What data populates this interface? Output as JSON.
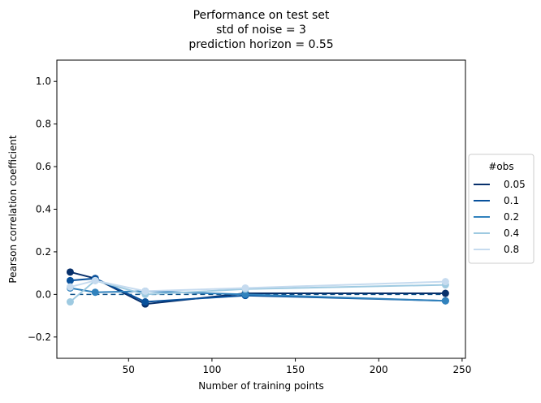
{
  "chart_data": {
    "type": "line",
    "title": [
      "Performance on test set",
      "std of noise = 3",
      "prediction horizon = 0.55"
    ],
    "xlabel": "Number of training points",
    "ylabel": "Pearson correlation coefficient",
    "xlim": [
      7,
      252
    ],
    "ylim": [
      -0.3,
      1.1
    ],
    "xticks": [
      50,
      100,
      150,
      200,
      250
    ],
    "yticks": [
      -0.2,
      0.0,
      0.2,
      0.4,
      0.6,
      0.8,
      1.0
    ],
    "grid": false,
    "legend": {
      "title": "#obs",
      "placement": "right"
    },
    "reference_line": {
      "y": 0.0,
      "style": "dashed",
      "color": "#0b4f86"
    },
    "x": [
      15,
      30,
      60,
      120,
      240
    ],
    "series": [
      {
        "name": "0.05",
        "color": "#08306b",
        "values": [
          0.105,
          0.075,
          -0.045,
          0.005,
          0.005
        ]
      },
      {
        "name": "0.1",
        "color": "#08519c",
        "values": [
          0.065,
          0.075,
          -0.035,
          -0.005,
          -0.03
        ]
      },
      {
        "name": "0.2",
        "color": "#3182bd",
        "values": [
          0.03,
          0.01,
          0.015,
          0.0,
          -0.03
        ]
      },
      {
        "name": "0.4",
        "color": "#9ecae1",
        "values": [
          -0.035,
          0.065,
          0.0,
          0.025,
          0.045
        ]
      },
      {
        "name": "0.8",
        "color": "#c6dbef",
        "values": [
          0.035,
          0.065,
          0.015,
          0.03,
          0.06
        ]
      }
    ]
  }
}
